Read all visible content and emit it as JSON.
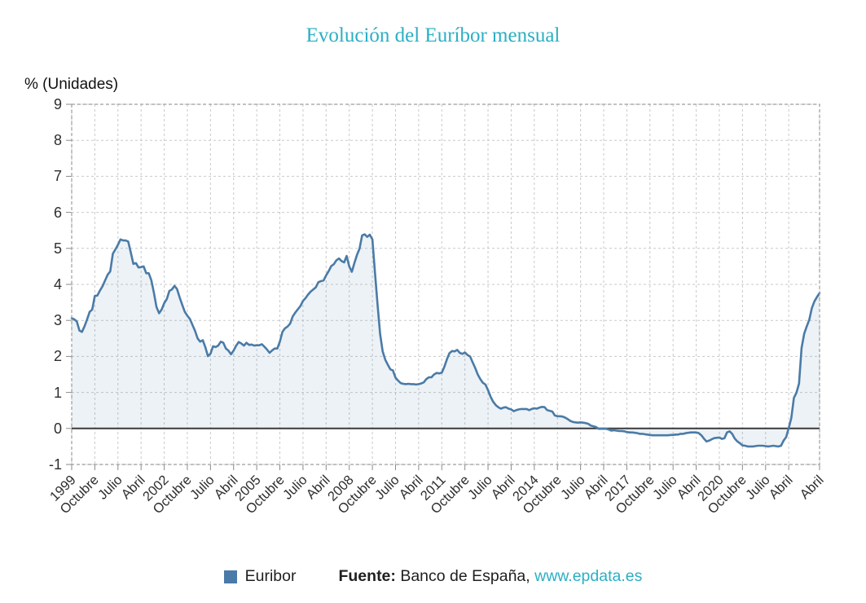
{
  "legend": {
    "label": "Euribor",
    "swatch_color": "#4a7aa8"
  },
  "footer": {
    "source_label": "Fuente:",
    "source_text": " Banco de España, ",
    "link_text": "www.epdata.es"
  },
  "colors": {
    "accent_teal": "#2bafc4",
    "line": "#4a7ba7",
    "area_fill": "rgba(74,123,167,0.10)",
    "zero_line": "#3a3a3a",
    "grid": "#c9c9c9"
  },
  "chart_data": {
    "type": "area",
    "title": "Evolución del Euríbor mensual",
    "y_axis_title": "% (Unidades)",
    "xlabel": "",
    "ylabel": "% (Unidades)",
    "ylim": [
      -1,
      9
    ],
    "y_ticks": [
      9,
      8,
      7,
      6,
      5,
      4,
      3,
      2,
      1,
      0,
      -1
    ],
    "grid": "dashed",
    "legend_position": "bottom",
    "x_start": "Enero 1999",
    "x_end": "Abril 2023",
    "x_tick_labels": [
      "1999",
      "Octubre",
      "Julio",
      "Abril",
      "2002",
      "Octubre",
      "Julio",
      "Abril",
      "2005",
      "Octubre",
      "Julio",
      "Abril",
      "2008",
      "Octubre",
      "Julio",
      "Abril",
      "2011",
      "Octubre",
      "Julio",
      "Abril",
      "2014",
      "Octubre",
      "Julio",
      "Abril",
      "2017",
      "Octubre",
      "Julio",
      "Abril",
      "2020",
      "Octubre",
      "Julio",
      "Abril",
      "Abril"
    ],
    "x_tick_month_indices": [
      0,
      9,
      18,
      27,
      36,
      45,
      54,
      63,
      72,
      81,
      90,
      99,
      108,
      117,
      126,
      135,
      144,
      153,
      162,
      171,
      180,
      189,
      198,
      207,
      216,
      225,
      234,
      243,
      252,
      261,
      270,
      279,
      291
    ],
    "series": [
      {
        "name": "Euribor",
        "color": "#4a7ba7",
        "area_fill": "rgba(74,123,167,0.10)",
        "values": [
          3.06,
          3.03,
          2.97,
          2.72,
          2.68,
          2.84,
          3.03,
          3.24,
          3.3,
          3.68,
          3.69,
          3.83,
          3.95,
          4.11,
          4.27,
          4.36,
          4.85,
          4.97,
          5.1,
          5.25,
          5.22,
          5.22,
          5.19,
          4.88,
          4.57,
          4.59,
          4.47,
          4.48,
          4.5,
          4.31,
          4.31,
          4.11,
          3.77,
          3.37,
          3.2,
          3.3,
          3.48,
          3.59,
          3.82,
          3.86,
          3.96,
          3.87,
          3.64,
          3.44,
          3.24,
          3.13,
          3.04,
          2.87,
          2.71,
          2.5,
          2.41,
          2.45,
          2.26,
          2.01,
          2.08,
          2.28,
          2.26,
          2.3,
          2.41,
          2.38,
          2.22,
          2.16,
          2.06,
          2.16,
          2.3,
          2.4,
          2.36,
          2.3,
          2.38,
          2.32,
          2.33,
          2.3,
          2.31,
          2.31,
          2.34,
          2.27,
          2.19,
          2.1,
          2.17,
          2.22,
          2.22,
          2.41,
          2.68,
          2.78,
          2.83,
          2.91,
          3.11,
          3.22,
          3.31,
          3.4,
          3.54,
          3.62,
          3.72,
          3.8,
          3.86,
          3.92,
          4.06,
          4.09,
          4.11,
          4.25,
          4.37,
          4.51,
          4.56,
          4.67,
          4.72,
          4.65,
          4.61,
          4.79,
          4.5,
          4.35,
          4.59,
          4.82,
          4.99,
          5.36,
          5.39,
          5.32,
          5.38,
          5.25,
          4.35,
          3.45,
          2.62,
          2.14,
          1.91,
          1.77,
          1.64,
          1.61,
          1.41,
          1.33,
          1.26,
          1.24,
          1.23,
          1.24,
          1.23,
          1.23,
          1.22,
          1.23,
          1.25,
          1.28,
          1.37,
          1.42,
          1.42,
          1.5,
          1.54,
          1.53,
          1.55,
          1.71,
          1.92,
          2.09,
          2.15,
          2.14,
          2.18,
          2.1,
          2.07,
          2.11,
          2.04,
          2.0,
          1.84,
          1.68,
          1.5,
          1.37,
          1.27,
          1.22,
          1.06,
          0.88,
          0.74,
          0.65,
          0.59,
          0.55,
          0.58,
          0.59,
          0.55,
          0.53,
          0.48,
          0.51,
          0.53,
          0.54,
          0.54,
          0.54,
          0.51,
          0.54,
          0.56,
          0.55,
          0.58,
          0.6,
          0.59,
          0.51,
          0.49,
          0.47,
          0.36,
          0.34,
          0.34,
          0.33,
          0.3,
          0.26,
          0.21,
          0.18,
          0.17,
          0.16,
          0.17,
          0.16,
          0.15,
          0.13,
          0.08,
          0.06,
          0.04,
          -0.01,
          -0.01,
          -0.01,
          -0.01,
          -0.03,
          -0.06,
          -0.05,
          -0.06,
          -0.07,
          -0.07,
          -0.08,
          -0.1,
          -0.11,
          -0.11,
          -0.12,
          -0.13,
          -0.15,
          -0.15,
          -0.16,
          -0.17,
          -0.18,
          -0.19,
          -0.19,
          -0.19,
          -0.19,
          -0.19,
          -0.19,
          -0.19,
          -0.18,
          -0.18,
          -0.17,
          -0.17,
          -0.15,
          -0.15,
          -0.13,
          -0.12,
          -0.11,
          -0.11,
          -0.11,
          -0.13,
          -0.19,
          -0.28,
          -0.36,
          -0.34,
          -0.3,
          -0.27,
          -0.26,
          -0.25,
          -0.29,
          -0.27,
          -0.11,
          -0.08,
          -0.15,
          -0.28,
          -0.36,
          -0.41,
          -0.47,
          -0.48,
          -0.5,
          -0.5,
          -0.5,
          -0.49,
          -0.48,
          -0.48,
          -0.48,
          -0.49,
          -0.5,
          -0.49,
          -0.48,
          -0.49,
          -0.5,
          -0.48,
          -0.34,
          -0.24,
          0.01,
          0.29,
          0.85,
          0.99,
          1.25,
          2.23,
          2.63,
          2.83,
          3.02,
          3.34,
          3.53,
          3.65,
          3.76
        ]
      }
    ]
  }
}
